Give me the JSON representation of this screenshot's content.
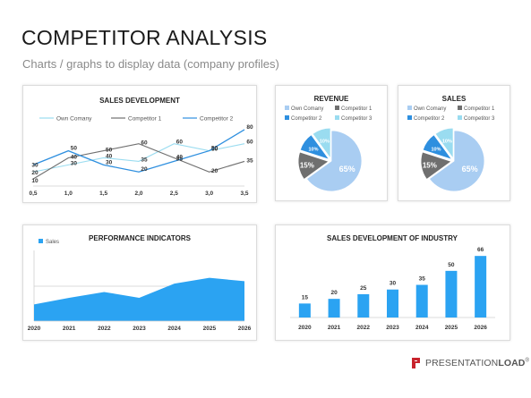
{
  "header": {
    "title": "COMPETITOR ANALYSIS",
    "subtitle": "Charts / graphs to display data (company profiles)"
  },
  "brand": {
    "name_part1": "PRESENTATION",
    "name_part2": "LOAD",
    "registered": "®"
  },
  "colors": {
    "c0": "#a9cdf2",
    "c1": "#6f6f6f",
    "c2": "#2e8fdf",
    "c3": "#9adcf0",
    "bar": "#2ba3f2",
    "area": "#2ba3f2"
  },
  "chart_data": [
    {
      "id": "sales-development",
      "type": "line",
      "title": "SALES DEVELOPMENT",
      "legend_position": "top",
      "x": [
        0.5,
        1.0,
        1.5,
        2.0,
        2.5,
        3.0,
        3.5
      ],
      "x_tick_labels": [
        "0,5",
        "1,0",
        "1,5",
        "2,0",
        "2,5",
        "3,0",
        "3,5"
      ],
      "ylim": [
        0,
        85
      ],
      "series": [
        {
          "name": "Own Comany",
          "values": [
            20,
            30,
            40,
            35,
            60,
            50,
            60
          ],
          "color_key": "c3"
        },
        {
          "name": "Competitor 1",
          "values": [
            10,
            40,
            50,
            60,
            40,
            20,
            35
          ],
          "color_key": "c1"
        },
        {
          "name": "Competitor 2",
          "values": [
            30,
            50,
            30,
            20,
            35,
            50,
            80
          ],
          "color_key": "c2"
        }
      ]
    },
    {
      "id": "revenue",
      "type": "pie",
      "title": "REVENUE",
      "legend": [
        "Own Comany",
        "Competitor 1",
        "Competitor 2",
        "Competitor 3"
      ],
      "slice_colors": [
        "c0",
        "c1",
        "c2",
        "c3"
      ],
      "values": [
        65,
        15,
        10,
        10
      ],
      "labels": [
        "65%",
        "15%",
        "10%",
        "10%"
      ]
    },
    {
      "id": "sales",
      "type": "pie",
      "title": "SALES",
      "legend": [
        "Own Comany",
        "Competitor 1",
        "Competitor 2",
        "Competitor 3"
      ],
      "slice_colors": [
        "c0",
        "c1",
        "c2",
        "c3"
      ],
      "values": [
        65,
        15,
        10,
        10
      ],
      "labels": [
        "65%",
        "15%",
        "10%",
        "10%"
      ]
    },
    {
      "id": "performance-indicators",
      "type": "area",
      "title": "PERFORMANCE INDICATORS",
      "legend": [
        "Sales"
      ],
      "categories": [
        "2020",
        "2021",
        "2022",
        "2023",
        "2024",
        "2025",
        "2026"
      ],
      "values": [
        20,
        28,
        35,
        28,
        45,
        52,
        48
      ],
      "ylim": [
        0,
        85
      ],
      "reference_line": 42
    },
    {
      "id": "sales-development-of-industry",
      "type": "bar",
      "title": "SALES DEVELOPMENT OF INDUSTRY",
      "categories": [
        "2020",
        "2021",
        "2022",
        "2023",
        "2024",
        "2025",
        "2026"
      ],
      "values": [
        15,
        20,
        25,
        30,
        35,
        50,
        66
      ],
      "labels": [
        "15",
        "20",
        "25",
        "30",
        "35",
        "50",
        "66"
      ],
      "ylim": [
        0,
        70
      ]
    }
  ]
}
